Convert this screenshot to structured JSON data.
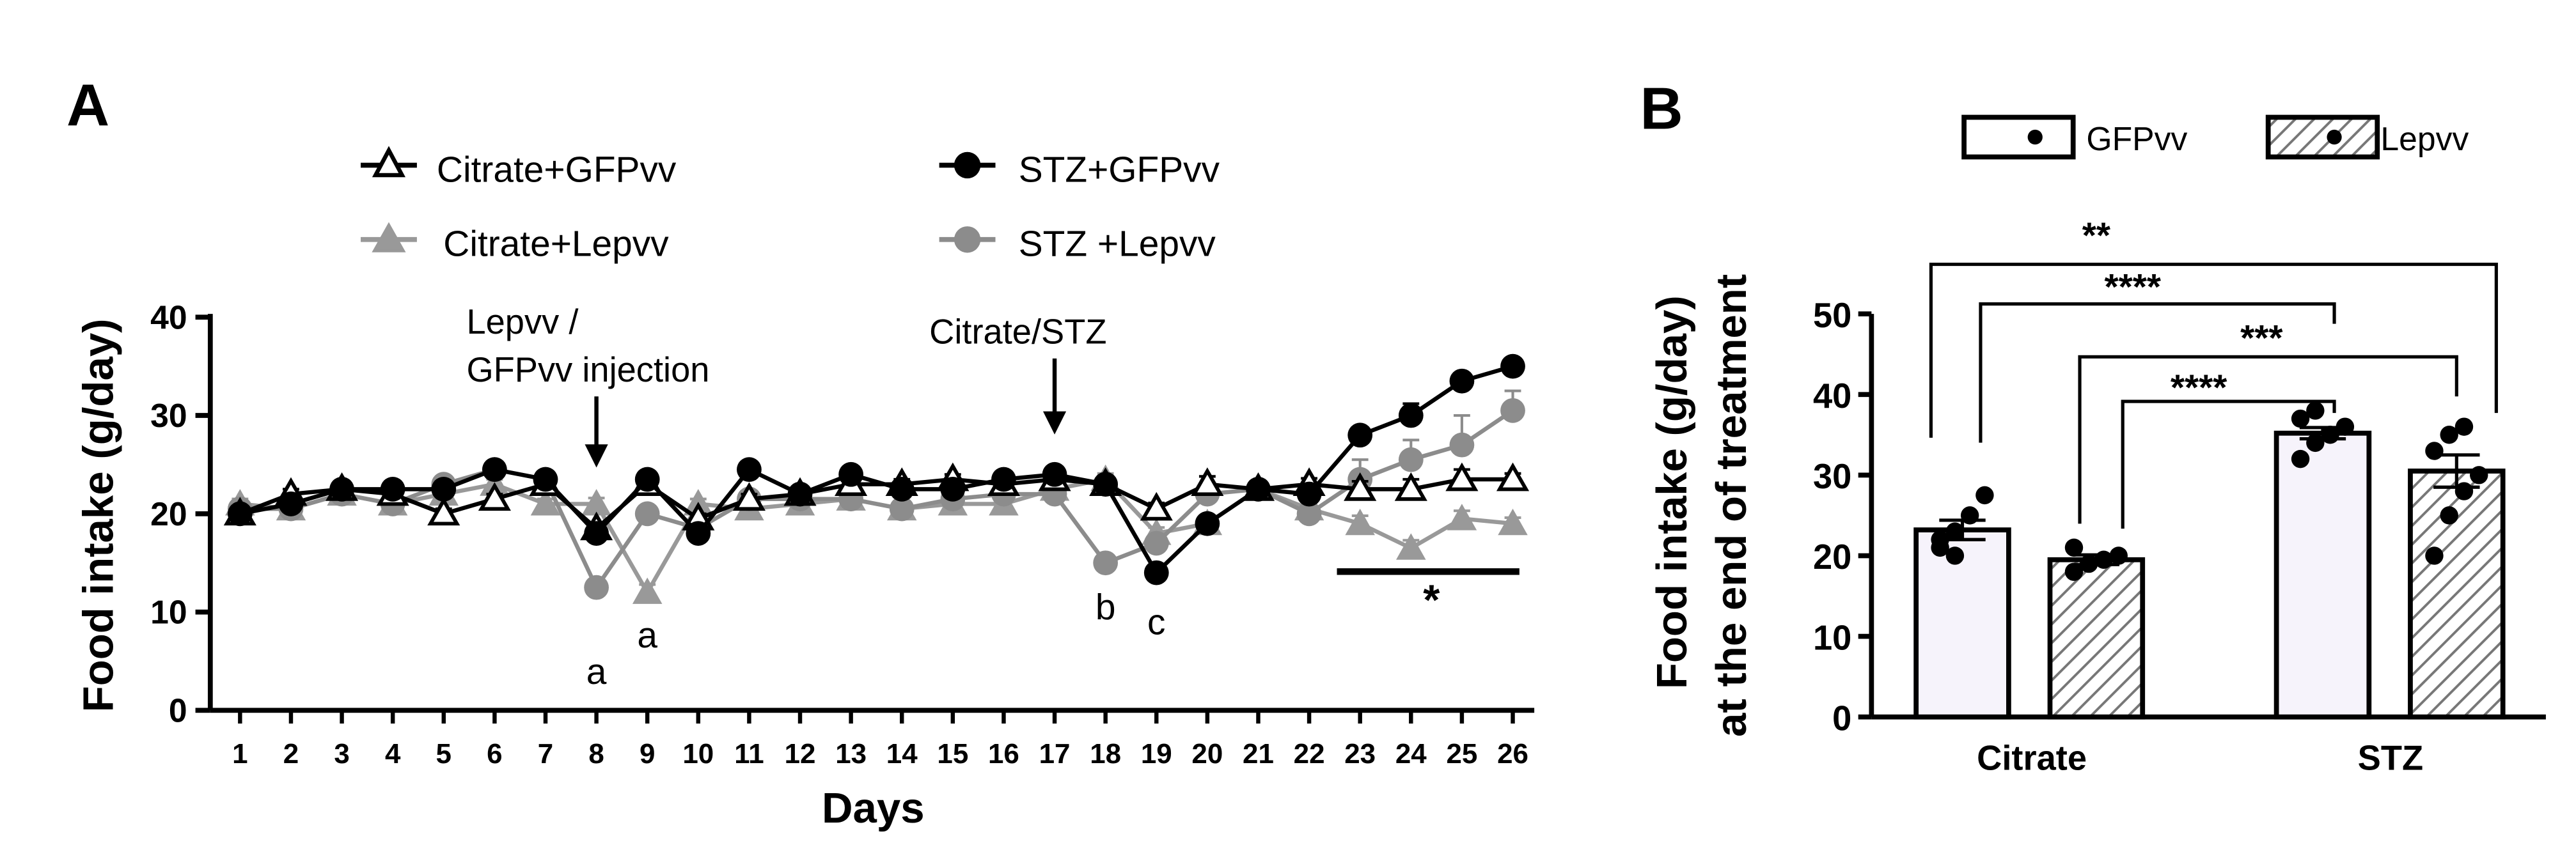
{
  "chart_data": [
    {
      "panel": "A",
      "type": "line",
      "xlabel": "Days",
      "ylabel": "Food intake (g/day)",
      "ylim": [
        0,
        40
      ],
      "yticks": [
        "0",
        "10",
        "20",
        "30",
        "40"
      ],
      "x": [
        1,
        2,
        3,
        4,
        5,
        6,
        7,
        8,
        9,
        10,
        11,
        12,
        13,
        14,
        15,
        16,
        17,
        18,
        19,
        20,
        21,
        22,
        23,
        24,
        25,
        26
      ],
      "xtick_labels": [
        "1",
        "2",
        "3",
        "4",
        "5",
        "6",
        "7",
        "8",
        "9",
        "10",
        "11",
        "12",
        "13",
        "14",
        "15",
        "16",
        "17",
        "18",
        "19",
        "20",
        "21",
        "22",
        "23",
        "24",
        "25",
        "26"
      ],
      "series": [
        {
          "name": "Citrate+GFPvv",
          "marker": "triangle-open",
          "color": "#000000",
          "values": [
            20,
            22,
            22.5,
            22,
            20,
            21.5,
            23,
            18.5,
            23,
            19.5,
            21.5,
            22,
            23,
            23,
            23.5,
            23,
            23.5,
            23,
            20.5,
            23,
            22.5,
            23,
            22.5,
            22.5,
            23.5,
            23.5
          ],
          "errors": [
            0.5,
            0.5,
            0.5,
            0.5,
            0.5,
            0.5,
            0.5,
            0.6,
            0.6,
            0.5,
            0.5,
            0.5,
            0.5,
            0.5,
            0.5,
            0.5,
            0.5,
            0.8,
            0.6,
            0.8,
            0.6,
            0.6,
            0.8,
            1.0,
            1.0,
            0.6
          ]
        },
        {
          "name": "Citrate+Lepvv",
          "marker": "triangle-filled",
          "color": "#999999",
          "values": [
            21,
            20.5,
            22,
            21,
            22,
            23,
            21,
            21,
            12,
            21,
            20.5,
            21,
            21.5,
            20.5,
            21,
            21,
            22.5,
            23.5,
            18,
            19,
            22.5,
            20.5,
            19,
            16.5,
            19.5,
            19
          ],
          "errors": [
            0.5,
            0.5,
            0.5,
            0.5,
            0.5,
            0.5,
            0.5,
            0.6,
            0.8,
            0.5,
            0.5,
            0.5,
            0.5,
            0.5,
            0.5,
            0.5,
            0.5,
            0.6,
            0.6,
            0.6,
            0.6,
            0.6,
            0.8,
            0.8,
            0.8,
            0.6
          ]
        },
        {
          "name": "STZ+GFPvv",
          "marker": "circle-filled",
          "color": "#000000",
          "values": [
            20,
            21,
            22.5,
            22.5,
            22.5,
            24.5,
            23.5,
            18,
            23.5,
            18,
            24.5,
            22,
            24,
            22.5,
            22.5,
            23.5,
            24,
            23,
            14,
            19,
            22.5,
            22,
            28,
            30,
            33.5,
            35
          ],
          "errors": [
            0.5,
            0.5,
            0.5,
            0.5,
            0.5,
            0.8,
            0.5,
            0.6,
            0.6,
            0.6,
            0.5,
            0.5,
            0.5,
            0.5,
            0.5,
            0.5,
            0.5,
            0.5,
            0.6,
            0.8,
            0.6,
            0.6,
            0.6,
            1.2,
            0.8,
            0.6
          ]
        },
        {
          "name": "STZ +Lepvv",
          "marker": "circle-filled",
          "color": "#8c8c8c",
          "values": [
            20.5,
            20.5,
            22,
            21,
            23,
            24.5,
            23.5,
            12.5,
            20,
            18.5,
            21.5,
            21.5,
            21.5,
            20.5,
            21.5,
            22,
            22,
            15,
            17,
            22,
            22.5,
            20,
            23.5,
            25.5,
            27,
            30.5
          ],
          "errors": [
            0.5,
            0.5,
            0.5,
            0.5,
            0.5,
            0.5,
            0.5,
            0.6,
            0.6,
            0.6,
            0.5,
            0.5,
            0.5,
            0.5,
            0.5,
            0.5,
            0.5,
            0.6,
            0.6,
            0.6,
            0.6,
            0.6,
            2.0,
            2.0,
            3.0,
            2.0
          ]
        }
      ],
      "annotations": {
        "injection": {
          "text_line1": "Lepvv /",
          "text_line2": "GFPvv injection",
          "day": 8
        },
        "stz": {
          "text": "Citrate/STZ",
          "day": 17
        },
        "letters": [
          {
            "text": "a",
            "day": 8
          },
          {
            "text": "a",
            "day": 9
          },
          {
            "text": "b",
            "day": 18
          },
          {
            "text": "c",
            "day": 19
          }
        ],
        "significance": {
          "text": "*",
          "from_day": 23,
          "to_day": 26
        }
      }
    },
    {
      "panel": "B",
      "type": "bar",
      "ylabel_line1": "Food intake (g/day)",
      "ylabel_line2": "at the end of treatment",
      "ylim": [
        0,
        50
      ],
      "yticks": [
        "0",
        "10",
        "20",
        "30",
        "40",
        "50"
      ],
      "categories": [
        "Citrate",
        "STZ"
      ],
      "series": [
        {
          "name": "GFPvv",
          "pattern": "open",
          "values": [
            23.2,
            35.2
          ],
          "errors": [
            1.2,
            0.7
          ],
          "points": [
            [
              21,
              23,
              25,
              27.5,
              22,
              20
            ],
            [
              32,
              34,
              35,
              36,
              37,
              38
            ]
          ]
        },
        {
          "name": "Lepvv",
          "pattern": "hatched",
          "values": [
            19.5,
            30.5
          ],
          "errors": [
            0.6,
            2.0
          ],
          "points": [
            [
              18,
              19,
              19.5,
              20,
              21
            ],
            [
              20,
              25,
              28,
              30,
              33,
              35,
              36
            ]
          ]
        }
      ],
      "comparisons": [
        {
          "text": "**"
        },
        {
          "text": "****"
        },
        {
          "text": "***"
        },
        {
          "text": "****"
        }
      ]
    }
  ]
}
